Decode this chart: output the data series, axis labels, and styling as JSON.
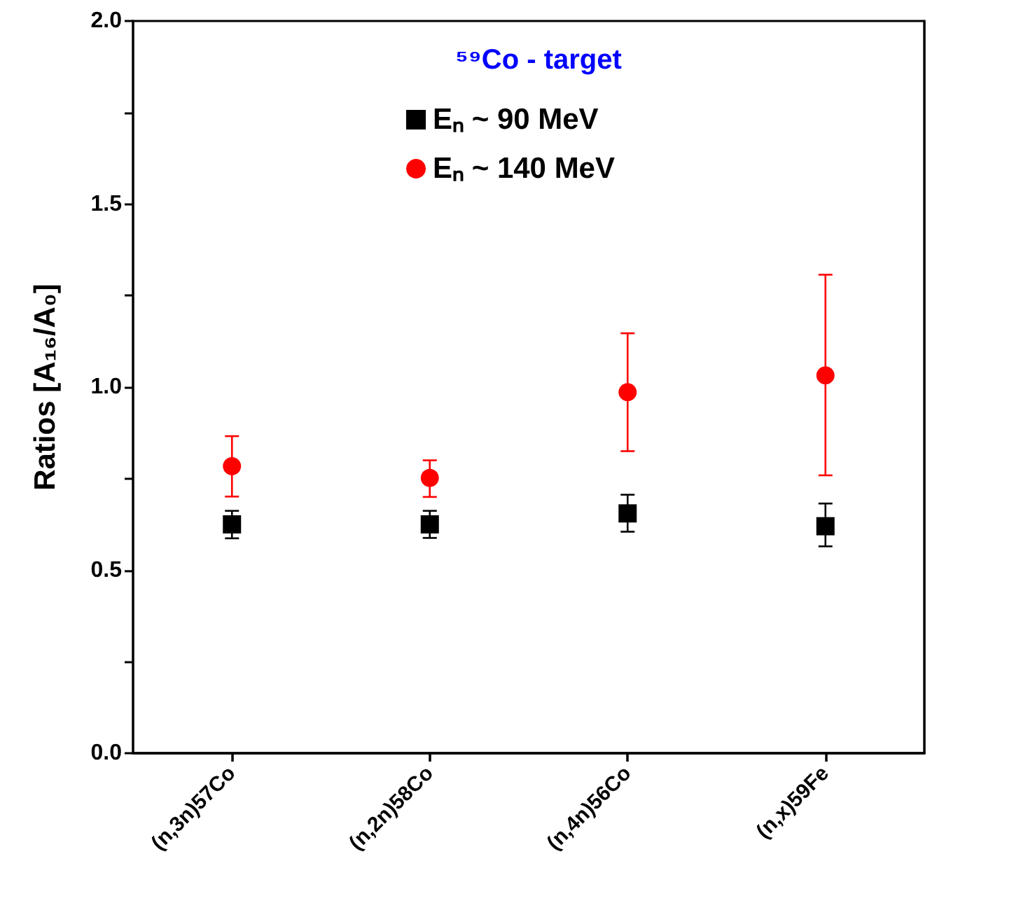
{
  "chart_data": {
    "type": "scatter",
    "ylabel": "Ratios [A₁₆/A₀]",
    "legend_title": "⁵⁹Co - target",
    "categories": [
      "(n,3n)57Co",
      "(n,2n)58Co",
      "(n,4n)56Co",
      "(n,x)59Fe"
    ],
    "series": [
      {
        "name": "Eₙ ~ 90 MeV",
        "color": "#000000",
        "marker": "square",
        "values": [
          0.625,
          0.625,
          0.655,
          0.62
        ],
        "errors": [
          [
            0.587,
            0.662
          ],
          [
            0.588,
            0.662
          ],
          [
            0.605,
            0.706
          ],
          [
            0.565,
            0.682
          ]
        ]
      },
      {
        "name": "Eₙ ~ 140 MeV",
        "color": "#ff0000",
        "marker": "circle",
        "values": [
          0.784,
          0.752,
          0.986,
          1.032
        ],
        "errors": [
          [
            0.701,
            0.866
          ],
          [
            0.7,
            0.8
          ],
          [
            0.825,
            1.147
          ],
          [
            0.759,
            1.307
          ]
        ]
      }
    ],
    "ylim": [
      0,
      2
    ],
    "yticks": [
      {
        "value": 0,
        "label": "0.0"
      },
      {
        "value": 0.25,
        "label": null
      },
      0.5,
      {
        "value": 0.75,
        "label": null
      },
      {
        "value": 1,
        "label": "1.0"
      },
      {
        "value": 1.25,
        "label": null
      },
      1.5,
      {
        "value": 1.75,
        "label": null
      },
      {
        "value": 2,
        "label": "2.0"
      }
    ],
    "grid": false,
    "legend": "top"
  }
}
